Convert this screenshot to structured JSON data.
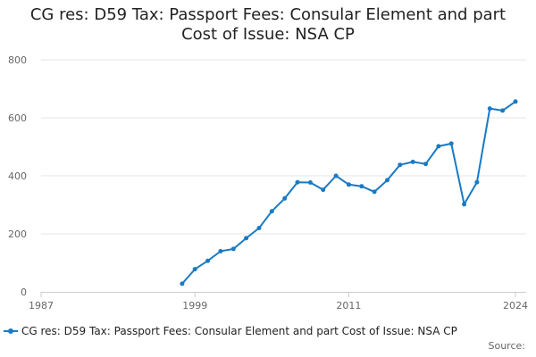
{
  "chart_data": {
    "type": "line",
    "title_lines": [
      "CG res: D59 Tax: Passport Fees: Consular Element and part",
      "Cost of Issue: NSA CP"
    ],
    "xlabel": "",
    "ylabel": "",
    "xlim": [
      1987,
      2024
    ],
    "ylim": [
      0,
      800
    ],
    "x_ticks": [
      1987,
      1999,
      2011,
      2024
    ],
    "y_ticks": [
      0,
      200,
      400,
      600,
      800
    ],
    "grid": true,
    "legend": "bottom",
    "series": [
      {
        "name": "CG res: D59 Tax: Passport Fees: Consular Element and part Cost of Issue: NSA CP",
        "color": "#1a7ac4",
        "x": [
          1998,
          1999,
          2000,
          2001,
          2002,
          2003,
          2004,
          2005,
          2006,
          2007,
          2008,
          2009,
          2010,
          2011,
          2012,
          2013,
          2014,
          2015,
          2016,
          2017,
          2018,
          2019,
          2020,
          2021,
          2022,
          2023,
          2024
        ],
        "values": [
          28,
          78,
          107,
          140,
          148,
          185,
          220,
          278,
          322,
          378,
          377,
          352,
          400,
          370,
          364,
          345,
          385,
          438,
          448,
          441,
          502,
          511,
          302,
          378,
          632,
          625,
          656
        ]
      }
    ]
  },
  "source_label": "Source:"
}
